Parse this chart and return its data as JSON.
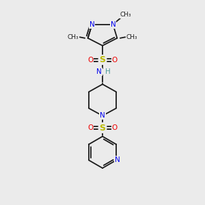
{
  "bg_color": "#ebebeb",
  "bond_color": "#1a1a1a",
  "N_color": "#0000ee",
  "O_color": "#ee0000",
  "S_color": "#bbbb00",
  "H_color": "#4d9999",
  "font_size": 7.5,
  "bold_size": 9.0,
  "bond_lw": 1.3,
  "xlim": [
    0,
    10
  ],
  "ylim": [
    0,
    10
  ]
}
